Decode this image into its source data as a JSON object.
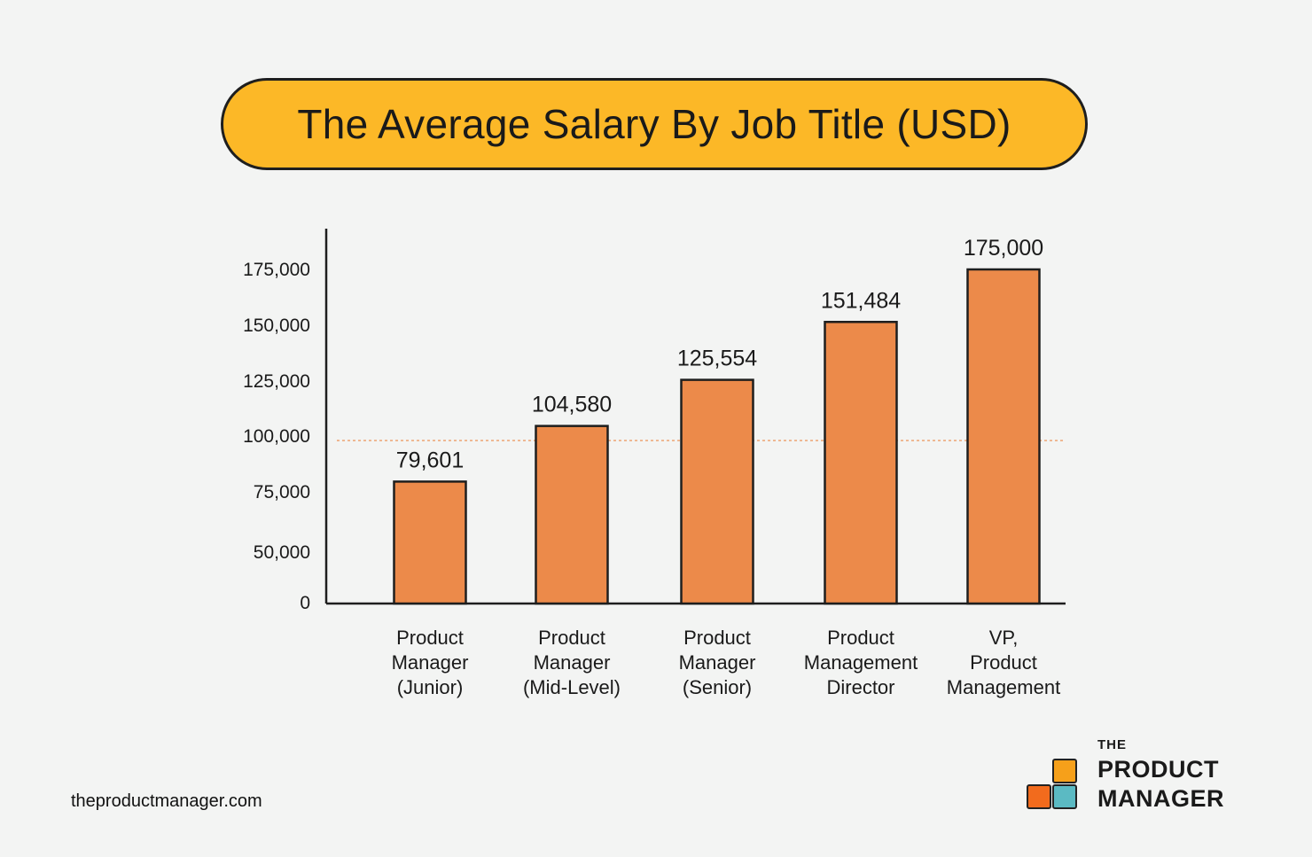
{
  "chart_data": {
    "type": "bar",
    "title": "The Average Salary By Job Title (USD)",
    "categories": [
      [
        "Product",
        "Manager",
        "(Junior)"
      ],
      [
        "Product",
        "Manager",
        "(Mid-Level)"
      ],
      [
        "Product",
        "Manager",
        "(Senior)"
      ],
      [
        "Product",
        "Management",
        "Director"
      ],
      [
        "VP,",
        "Product",
        "Management"
      ]
    ],
    "values": [
      79601,
      104580,
      125554,
      151484,
      175000
    ],
    "value_labels": [
      "79,601",
      "104,580",
      "125,554",
      "151,484",
      "175,000"
    ],
    "yticks": [
      0,
      50000,
      75000,
      100000,
      125000,
      150000,
      175000
    ],
    "ytick_labels": [
      "0",
      "50,000",
      "75,000",
      "100,000",
      "125,000",
      "150,000",
      "175,000"
    ],
    "reference_line": 98000,
    "ylim": [
      0,
      185000
    ],
    "grid": false,
    "colors": {
      "bar": "#ec8a4a",
      "outline": "#1e1e1e",
      "reference_line": "#ec8a4a",
      "title_bg": "#fcb827"
    }
  },
  "footer": {
    "site": "theproductmanager.com"
  },
  "brand": {
    "the": "THE",
    "line1": "PRODUCT",
    "line2": "MANAGER",
    "square_colors": [
      "#f6a01a",
      "#f26b1d",
      "#5bbac3"
    ]
  }
}
